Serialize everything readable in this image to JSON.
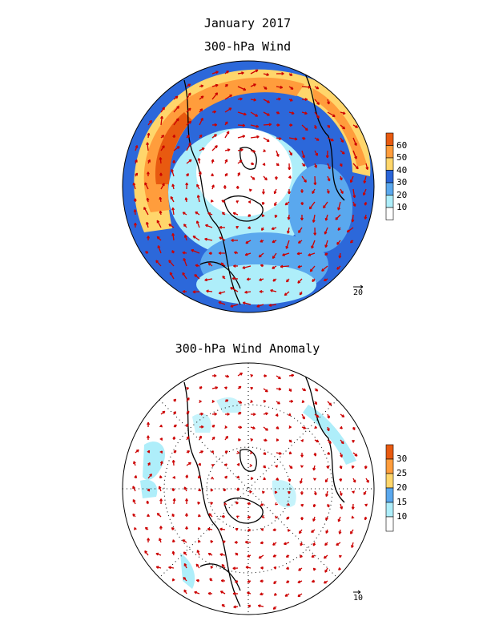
{
  "header": {
    "title": "January 2017",
    "map1_title": "300-hPa Wind",
    "map2_title": "300-hPa Wind Anomaly"
  },
  "colors": {
    "white": "#ffffff",
    "pale_cyan": "#aeeefa",
    "light_blue": "#5aa8ee",
    "blue": "#2a64d8",
    "yellow": "#ffd66b",
    "orange": "#ff9d3c",
    "dark_orange": "#e85a10",
    "vector": "#cc0000"
  },
  "map1": {
    "colorbar": {
      "ticks": [
        "60",
        "50",
        "40",
        "30",
        "20",
        "10"
      ],
      "colors": [
        "#e85a10",
        "#ff9d3c",
        "#ffd66b",
        "#2a64d8",
        "#5aa8ee",
        "#aeeefa",
        "#ffffff"
      ]
    },
    "reference_vector": "20"
  },
  "map2": {
    "colorbar": {
      "ticks": [
        "30",
        "25",
        "20",
        "15",
        "10"
      ],
      "colors": [
        "#e85a10",
        "#ff9d3c",
        "#ffd66b",
        "#5aa8ee",
        "#aeeefa",
        "#ffffff"
      ]
    },
    "reference_vector": "10"
  }
}
